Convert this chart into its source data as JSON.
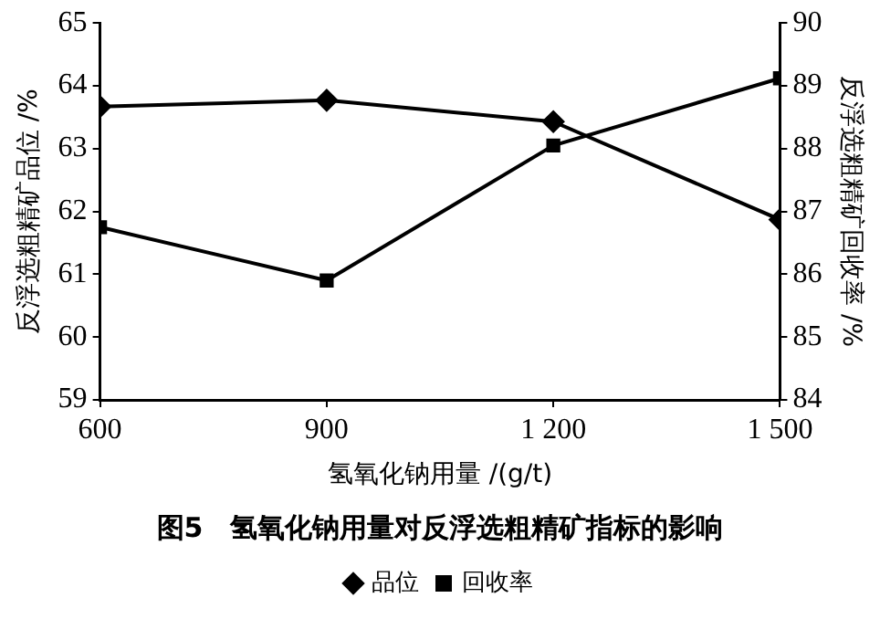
{
  "chart_data": {
    "type": "line",
    "title": "图5　氢氧化钠用量对反浮选粗精矿指标的影响",
    "xlabel": "氢氧化钠用量 /(g/t)",
    "ylabel": "反浮选粗精矿品位 /%",
    "y2label": "反浮选粗精矿回收率 /%",
    "x": [
      600,
      900,
      1200,
      1500
    ],
    "xlim": [
      600,
      1500
    ],
    "xticks": [
      600,
      900,
      {
        "value": 1200,
        "label": "1 200"
      },
      {
        "value": 1500,
        "label": "1 500"
      }
    ],
    "ylim": [
      59,
      65
    ],
    "yticks": [
      59,
      60,
      61,
      62,
      63,
      64,
      65
    ],
    "y2lim": [
      84,
      90
    ],
    "y2ticks": [
      84,
      85,
      86,
      87,
      88,
      89,
      90
    ],
    "series": [
      {
        "name": "品位",
        "color": "#000000",
        "marker": "diamond",
        "values": [
          63.67,
          63.77,
          63.43,
          61.87
        ]
      },
      {
        "name": "回收率",
        "color": "#000000",
        "marker": "square",
        "axis": "y2",
        "values": [
          86.75,
          85.9,
          88.05,
          89.12
        ]
      }
    ],
    "legend": "bottom",
    "grid": false,
    "line_style": "solid"
  }
}
